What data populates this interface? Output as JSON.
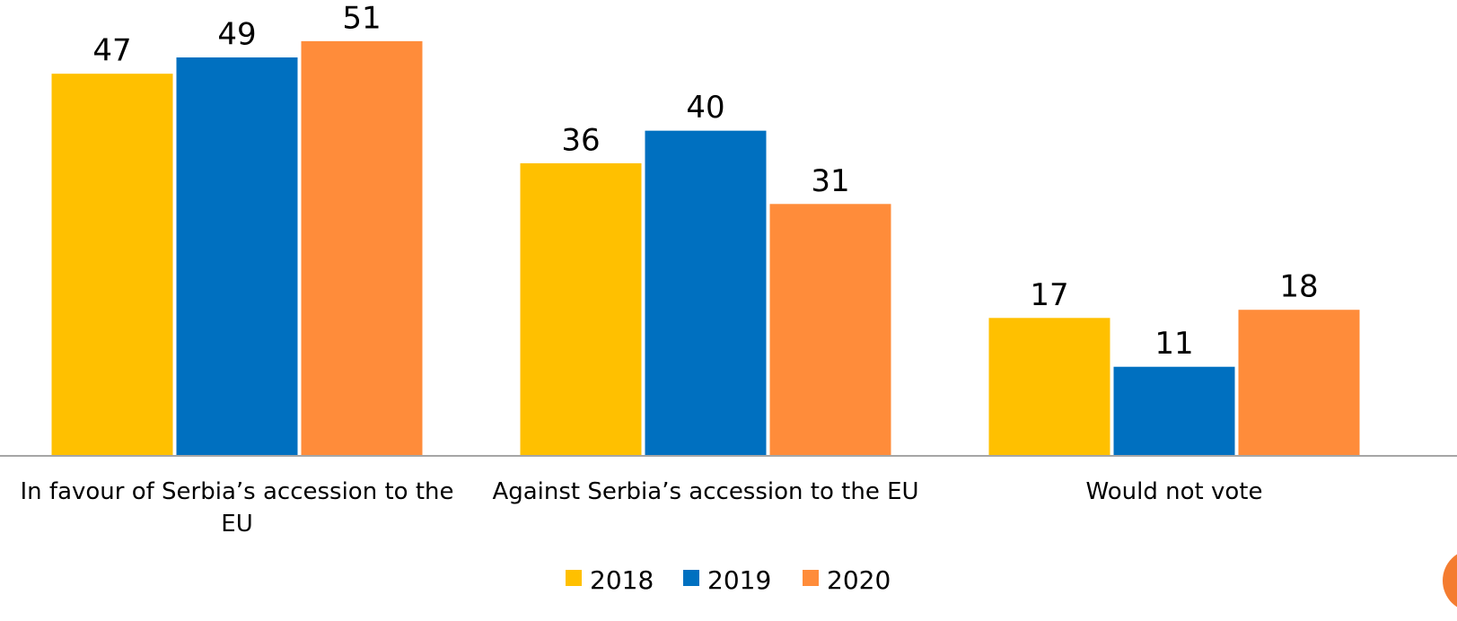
{
  "chart_data": {
    "type": "bar",
    "categories": [
      "In favour of Serbia’s accession to the EU",
      "Against Serbia’s accession to the EU",
      "Would not vote"
    ],
    "category_lines": [
      [
        "In favour of Serbia’s accession to the",
        "EU"
      ],
      [
        "Against Serbia’s accession to the EU"
      ],
      [
        "Would not vote"
      ]
    ],
    "series": [
      {
        "name": "2018",
        "values": [
          47,
          36,
          17
        ],
        "color": "#FFC000"
      },
      {
        "name": "2019",
        "values": [
          49,
          40,
          11
        ],
        "color": "#0070C0"
      },
      {
        "name": "2020",
        "values": [
          51,
          31,
          18
        ],
        "color": "#FF8C3A"
      }
    ],
    "ylim": [
      0,
      56
    ],
    "grid": false,
    "legend_position": "bottom",
    "accent_color": "#F47C30"
  }
}
